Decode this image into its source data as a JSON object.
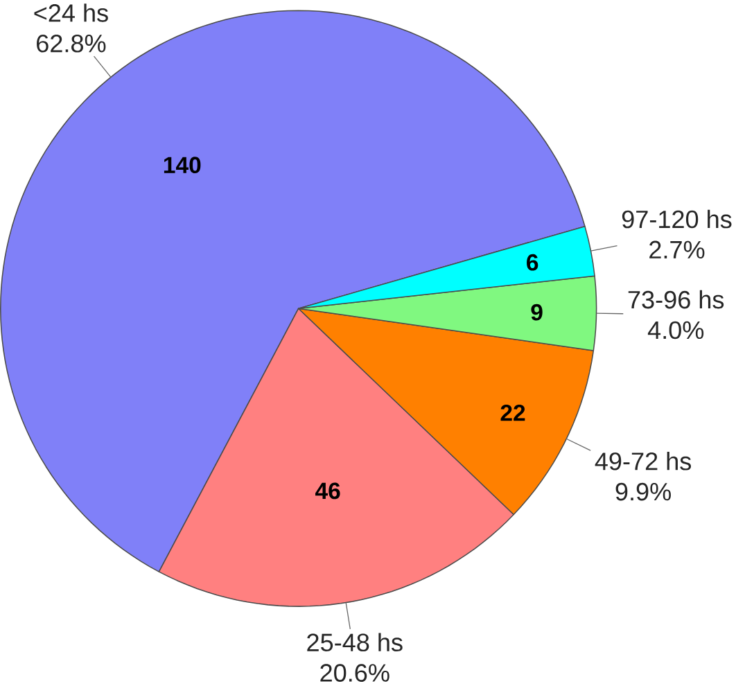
{
  "chart_data": {
    "type": "pie",
    "categories": [
      "<24 hs",
      "25-48 hs",
      "49-72 hs",
      "73-96 hs",
      "97-120 hs"
    ],
    "values": [
      62.8,
      20.6,
      9.9,
      4.0,
      2.7
    ],
    "value_labels": [
      "62.8%",
      "20.6%",
      "9.9%",
      "4.0%",
      "2.7%"
    ],
    "colors": [
      "#8080f8",
      "#ff8080",
      "#ff8000",
      "#80f880",
      "#00ffff"
    ],
    "annotations": [
      "140",
      "46",
      "22",
      "9",
      "6"
    ]
  }
}
